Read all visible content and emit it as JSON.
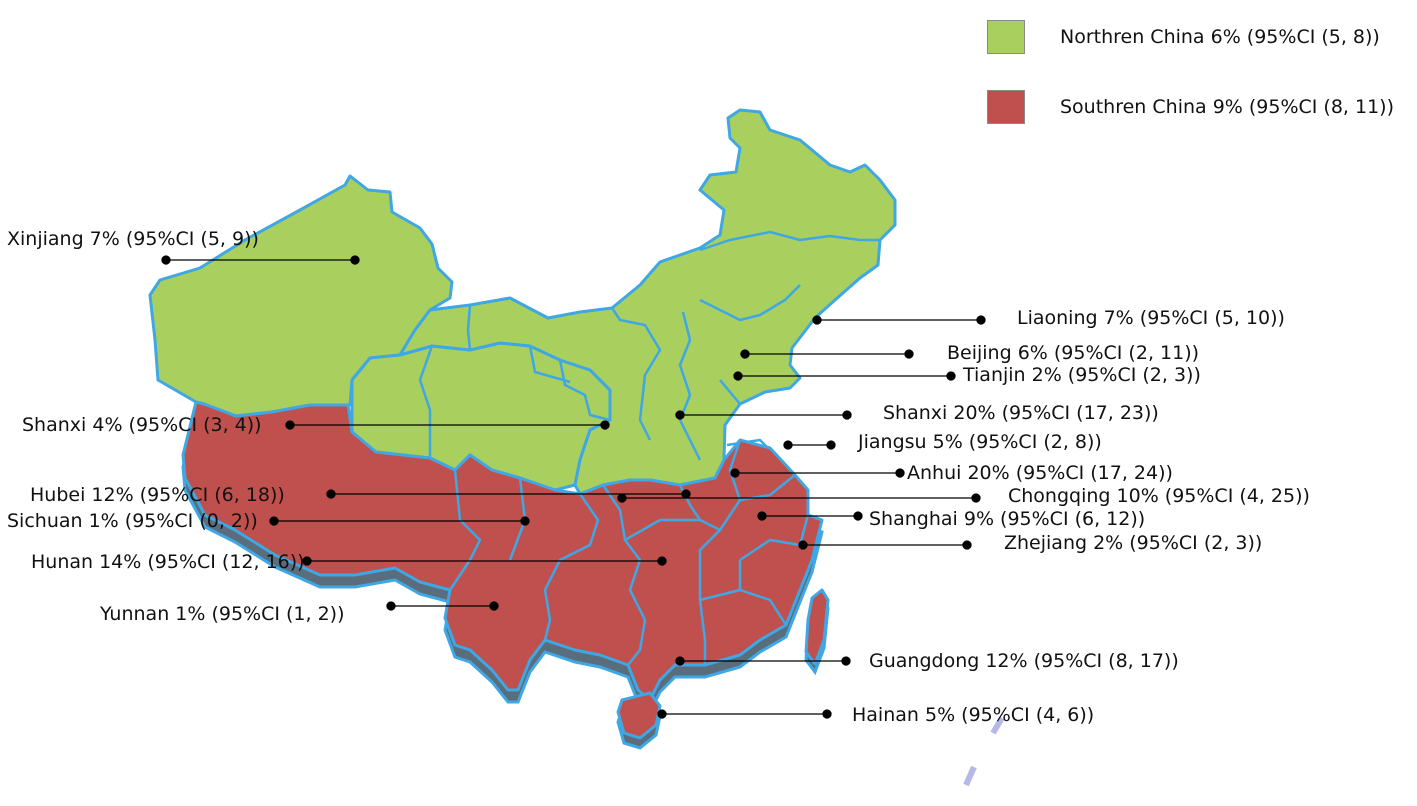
{
  "legend": {
    "north": {
      "label": "Northren China 6% (95%CI (5, 8))",
      "color": "#a9cf5f"
    },
    "south": {
      "label": "Southren China 9% (95%CI (8, 11))",
      "color": "#c0504d"
    }
  },
  "border_color": "#3fa7e3",
  "extrusion_color": "#5a6d7c",
  "regions": [
    {
      "name": "Xinjiang",
      "label": "Xinjiang 7% (95%CI (5, 9))",
      "group": "north"
    },
    {
      "name": "Liaoning",
      "label": "Liaoning 7% (95%CI (5, 10))",
      "group": "north"
    },
    {
      "name": "Beijing",
      "label": "Beijing 6% (95%CI (2, 11))",
      "group": "north"
    },
    {
      "name": "Tianjin",
      "label": "Tianjin 2% (95%CI (2, 3))",
      "group": "north"
    },
    {
      "name": "Shanxi (north)",
      "label": "Shanxi 20% (95%CI (17, 23))",
      "group": "north"
    },
    {
      "name": "Shanxi (west)",
      "label": "Shanxi 4% (95%CI (3, 4))",
      "group": "north"
    },
    {
      "name": "Jiangsu",
      "label": "Jiangsu 5% (95%CI (2, 8))",
      "group": "south"
    },
    {
      "name": "Anhui",
      "label": "Anhui 20% (95%CI (17, 24))",
      "group": "south"
    },
    {
      "name": "Hubei",
      "label": "Hubei 12% (95%CI (6, 18))",
      "group": "south"
    },
    {
      "name": "Chongqing",
      "label": "Chongqing 10% (95%CI (4, 25))",
      "group": "south"
    },
    {
      "name": "Sichuan",
      "label": "Sichuan 1% (95%CI (0, 2))",
      "group": "south"
    },
    {
      "name": "Shanghai",
      "label": "Shanghai 9% (95%CI (6, 12))",
      "group": "south"
    },
    {
      "name": "Hunan",
      "label": "Hunan 14% (95%CI (12, 16))",
      "group": "south"
    },
    {
      "name": "Zhejiang",
      "label": "Zhejiang 2% (95%CI (2, 3))",
      "group": "south"
    },
    {
      "name": "Yunnan",
      "label": "Yunnan 1% (95%CI (1, 2))",
      "group": "south"
    },
    {
      "name": "Guangdong",
      "label": "Guangdong 12% (95%CI (8, 17))",
      "group": "south"
    },
    {
      "name": "Hainan",
      "label": "Hainan 5% (95%CI (4, 6))",
      "group": "south"
    }
  ]
}
